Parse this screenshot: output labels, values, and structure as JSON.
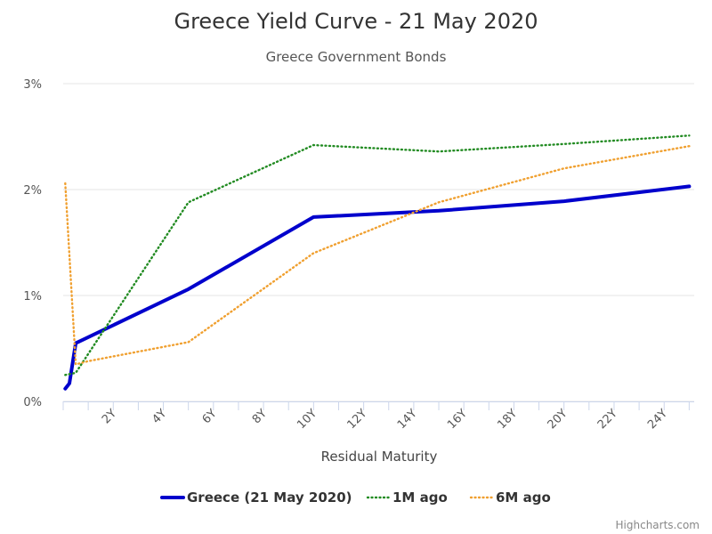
{
  "chart_data": {
    "type": "line",
    "title": "Greece Yield Curve - 21 May 2020",
    "subtitle": "Greece Government Bonds",
    "xlabel": "Residual Maturity",
    "ylabel": "",
    "xlim": [
      0,
      25.2
    ],
    "ylim": [
      0,
      3
    ],
    "x_ticks": [
      2,
      4,
      6,
      8,
      10,
      12,
      14,
      16,
      18,
      20,
      22,
      24
    ],
    "x_tick_labels": [
      "2Y",
      "4Y",
      "6Y",
      "8Y",
      "10Y",
      "12Y",
      "14Y",
      "16Y",
      "18Y",
      "20Y",
      "22Y",
      "24Y"
    ],
    "y_ticks": [
      0,
      1,
      2,
      3
    ],
    "y_tick_labels": [
      "0%",
      "1%",
      "2%",
      "3%"
    ],
    "grid": true,
    "legend_position": "bottom",
    "series": [
      {
        "name": "Greece (21 May 2020)",
        "color": "#0000cc",
        "style": "solid",
        "points": [
          [
            0.08,
            0.12
          ],
          [
            0.25,
            0.17
          ],
          [
            0.5,
            0.55
          ],
          [
            5,
            1.06
          ],
          [
            10,
            1.74
          ],
          [
            15,
            1.8
          ],
          [
            20,
            1.89
          ],
          [
            25,
            2.03
          ]
        ]
      },
      {
        "name": "1M ago",
        "color": "#228b22",
        "style": "dotted",
        "points": [
          [
            0.08,
            0.25
          ],
          [
            0.5,
            0.27
          ],
          [
            5,
            1.88
          ],
          [
            10,
            2.42
          ],
          [
            15,
            2.36
          ],
          [
            20,
            2.43
          ],
          [
            25,
            2.51
          ]
        ]
      },
      {
        "name": "6M ago",
        "color": "#f0a030",
        "style": "dotted",
        "points": [
          [
            0.08,
            2.06
          ],
          [
            0.5,
            0.35
          ],
          [
            1,
            0.38
          ],
          [
            5,
            0.56
          ],
          [
            10,
            1.4
          ],
          [
            15,
            1.88
          ],
          [
            20,
            2.2
          ],
          [
            25,
            2.41
          ]
        ]
      }
    ],
    "credits": "Highcharts.com"
  }
}
